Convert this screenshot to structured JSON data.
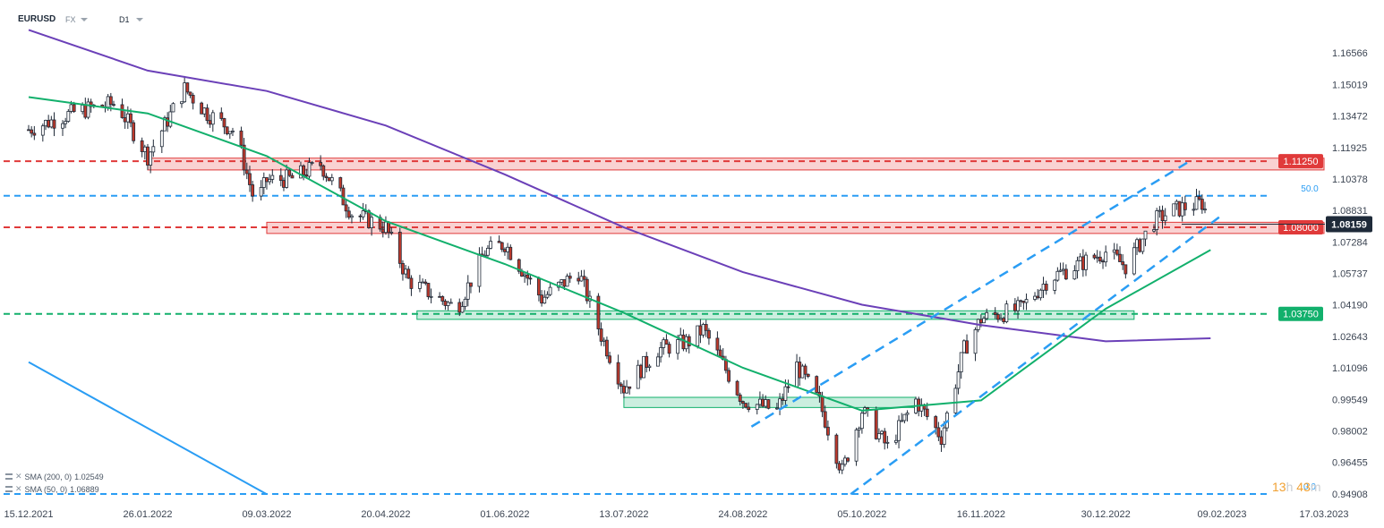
{
  "header": {
    "symbol": "EURUSD",
    "market": "FX",
    "timeframe": "D1"
  },
  "legend": [
    {
      "label": "SMA (200, 0)",
      "value": "1.02549"
    },
    {
      "label": "SMA (50, 0)",
      "value": "1.06889"
    }
  ],
  "timer": {
    "hours": "13",
    "h_unit": "h",
    "minutes": "43",
    "m_unit": "m"
  },
  "chart_data": {
    "type": "candlestick",
    "ylim": [
      0.9455,
      1.1785
    ],
    "y_ticks": [
      "1.16566",
      "1.15019",
      "1.13472",
      "1.11925",
      "1.10378",
      "1.08831",
      "1.07284",
      "1.05737",
      "1.04190",
      "1.02643",
      "1.01096",
      "0.99549",
      "0.98002",
      "0.96455",
      "0.94908"
    ],
    "x_ticks": [
      "15.12.2021",
      "26.01.2022",
      "09.03.2022",
      "20.04.2022",
      "01.06.2022",
      "13.07.2022",
      "24.08.2022",
      "05.10.2022",
      "16.11.2022",
      "30.12.2022",
      "09.02.2023",
      "17.03.2023"
    ],
    "current_price": "1.08159",
    "close_path": [
      [
        "15.12.2021",
        1.128
      ],
      [
        "01.01.2022",
        1.137
      ],
      [
        "15.01.2022",
        1.141
      ],
      [
        "26.01.2022",
        1.115
      ],
      [
        "08.02.2022",
        1.148
      ],
      [
        "16.02.2022",
        1.136
      ],
      [
        "26.02.2022",
        1.127
      ],
      [
        "05.03.2022",
        1.091
      ],
      [
        "09.03.2022",
        1.103
      ],
      [
        "18.03.2022",
        1.104
      ],
      [
        "28.03.2022",
        1.111
      ],
      [
        "08.04.2022",
        1.087
      ],
      [
        "20.04.2022",
        1.08
      ],
      [
        "28.04.2022",
        1.054
      ],
      [
        "15.05.2022",
        1.04
      ],
      [
        "25.05.2022",
        1.068
      ],
      [
        "01.06.2022",
        1.072
      ],
      [
        "14.06.2022",
        1.045
      ],
      [
        "27.06.2022",
        1.058
      ],
      [
        "05.07.2022",
        1.027
      ],
      [
        "13.07.2022",
        1.001
      ],
      [
        "25.07.2022",
        1.02
      ],
      [
        "05.08.2022",
        1.024
      ],
      [
        "10.08.2022",
        1.03
      ],
      [
        "24.08.2022",
        0.995
      ],
      [
        "05.09.2022",
        0.99
      ],
      [
        "12.09.2022",
        1.012
      ],
      [
        "20.09.2022",
        0.994
      ],
      [
        "28.09.2022",
        0.96
      ],
      [
        "05.10.2022",
        0.99
      ],
      [
        "14.10.2022",
        0.972
      ],
      [
        "24.10.2022",
        0.995
      ],
      [
        "02.11.2022",
        0.977
      ],
      [
        "10.11.2022",
        1.02
      ],
      [
        "16.11.2022",
        1.035
      ],
      [
        "30.11.2022",
        1.04
      ],
      [
        "10.12.2022",
        1.055
      ],
      [
        "30.12.2022",
        1.068
      ],
      [
        "06.01.2023",
        1.061
      ],
      [
        "16.01.2023",
        1.083
      ],
      [
        "22.01.2023",
        1.088
      ],
      [
        "27.01.2023",
        1.09
      ],
      [
        "02.02.2023",
        1.092
      ],
      [
        "05.02.2023",
        1.0816
      ]
    ],
    "series": [
      {
        "name": "SMA (200, 0)",
        "color": "#6b40b8",
        "points": [
          [
            "15.12.2021",
            1.177
          ],
          [
            "26.01.2022",
            1.157
          ],
          [
            "09.03.2022",
            1.147
          ],
          [
            "20.04.2022",
            1.13
          ],
          [
            "01.06.2022",
            1.106
          ],
          [
            "13.07.2022",
            1.08
          ],
          [
            "24.08.2022",
            1.058
          ],
          [
            "05.10.2022",
            1.042
          ],
          [
            "16.11.2022",
            1.032
          ],
          [
            "30.12.2022",
            1.024
          ],
          [
            "05.02.2023",
            1.0255
          ]
        ]
      },
      {
        "name": "SMA (50, 0)",
        "color": "#12b06c",
        "points": [
          [
            "15.12.2021",
            1.144
          ],
          [
            "26.01.2022",
            1.136
          ],
          [
            "09.03.2022",
            1.115
          ],
          [
            "20.04.2022",
            1.083
          ],
          [
            "01.06.2022",
            1.062
          ],
          [
            "13.07.2022",
            1.038
          ],
          [
            "24.08.2022",
            1.011
          ],
          [
            "05.10.2022",
            0.99
          ],
          [
            "16.11.2022",
            0.995
          ],
          [
            "30.12.2022",
            1.04
          ],
          [
            "05.02.2023",
            1.0689
          ]
        ]
      }
    ],
    "hlines": [
      {
        "price": 1.1125,
        "label": "1.11250",
        "color": "#e03a3a",
        "zone": [
          1.1082,
          1.114
        ],
        "zone_from": "26.01.2022",
        "zone_to": "17.03.2023"
      },
      {
        "price": 1.08,
        "label": "1.08000",
        "color": "#e03a3a",
        "zone": [
          1.077,
          1.0825
        ],
        "zone_from": "09.03.2022",
        "zone_to": "17.03.2023"
      },
      {
        "price": 1.0375,
        "label": "1.03750",
        "color": "#12b06c",
        "zone": [
          1.0348,
          1.039
        ],
        "zone_from": "01.05.2022",
        "zone_to": "09.01.2023"
      },
      {
        "price": 1.0955,
        "label": "50.0",
        "color": "#2a9df4"
      },
      {
        "price": 0.949,
        "label": "0.0",
        "color": "#2a9df4"
      }
    ],
    "demand_zone": {
      "range": [
        0.9915,
        0.9965
      ],
      "from": "13.07.2022",
      "to": "24.10.2022"
    },
    "trendlines": [
      {
        "color": "#2a9df4",
        "style": "dashed",
        "from": [
          "27.08.2022",
          0.9821
        ],
        "to": [
          "28.01.2023",
          1.112
        ]
      },
      {
        "color": "#2a9df4",
        "style": "dashed",
        "from": [
          "01.10.2022",
          0.9489
        ],
        "to": [
          "08.02.2023",
          1.085
        ]
      },
      {
        "color": "#2a9df4",
        "style": "solid",
        "from": [
          "15.12.2021",
          1.0138
        ],
        "to": [
          "09.03.2022",
          0.9489
        ]
      }
    ]
  }
}
